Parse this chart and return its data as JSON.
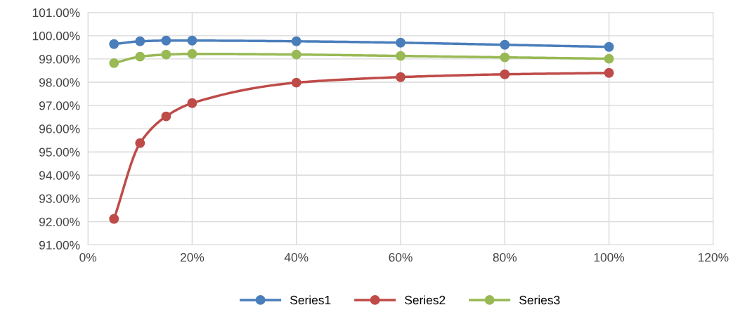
{
  "chart_data": {
    "type": "line",
    "x": [
      5,
      10,
      15,
      20,
      40,
      60,
      80,
      100
    ],
    "series": [
      {
        "name": "Series1",
        "color": "#4a7ebb",
        "values": [
          99.64,
          99.76,
          99.79,
          99.79,
          99.76,
          99.7,
          99.61,
          99.52
        ]
      },
      {
        "name": "Series2",
        "color": "#be4b48",
        "values": [
          92.12,
          95.38,
          96.53,
          97.1,
          97.98,
          98.22,
          98.34,
          98.4
        ]
      },
      {
        "name": "Series3",
        "color": "#98b954",
        "values": [
          98.82,
          99.1,
          99.19,
          99.22,
          99.19,
          99.13,
          99.07,
          99.01
        ]
      }
    ],
    "xlim": [
      0,
      120
    ],
    "xticks": [
      {
        "value": 0,
        "label": "0%"
      },
      {
        "value": 20,
        "label": "20%"
      },
      {
        "value": 40,
        "label": "40%"
      },
      {
        "value": 60,
        "label": "60%"
      },
      {
        "value": 80,
        "label": "80%"
      },
      {
        "value": 100,
        "label": "100%"
      },
      {
        "value": 120,
        "label": "120%"
      }
    ],
    "ylim": [
      91,
      101
    ],
    "yticks": [
      {
        "value": 91,
        "label": "91.00%"
      },
      {
        "value": 92,
        "label": "92.00%"
      },
      {
        "value": 93,
        "label": "93.00%"
      },
      {
        "value": 94,
        "label": "94.00%"
      },
      {
        "value": 95,
        "label": "95.00%"
      },
      {
        "value": 96,
        "label": "96.00%"
      },
      {
        "value": 97,
        "label": "97.00%"
      },
      {
        "value": 98,
        "label": "98.00%"
      },
      {
        "value": 99,
        "label": "99.00%"
      },
      {
        "value": 100,
        "label": "100.00%"
      },
      {
        "value": 101,
        "label": "101.00%"
      }
    ],
    "grid": true,
    "legend": "bottom",
    "marker": "circle",
    "line_style": "solid"
  }
}
